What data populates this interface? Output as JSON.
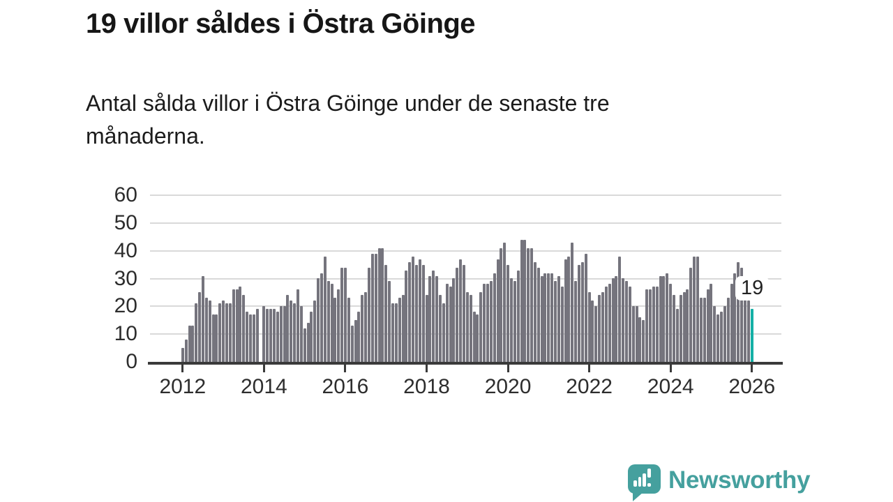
{
  "header": {
    "title": "19 villor såldes i Östra Göinge",
    "subtitle_line1": "Antal sålda villor i Östra Göinge under de senaste tre",
    "subtitle_line2": "månaderna."
  },
  "chart_data": {
    "type": "bar",
    "title": "19 villor såldes i Östra Göinge",
    "subtitle": "Antal sålda villor i Östra Göinge under de senaste tre månaderna.",
    "x_tick_labels": [
      "2012",
      "2014",
      "2016",
      "2018",
      "2020",
      "2022",
      "2024",
      "2026"
    ],
    "months_per_xtick": 24,
    "y_ticks": [
      0,
      10,
      20,
      30,
      40,
      50,
      60
    ],
    "ylim": [
      0,
      60
    ],
    "grid": "horizontal",
    "legend": "none",
    "bar_color": "#75747d",
    "highlight_color": "#14b0a6",
    "highlight_index_from_end": 1,
    "highlight_value": 19,
    "highlight_label": "19",
    "values": [
      5,
      8,
      13,
      13,
      21,
      25,
      31,
      23,
      22,
      17,
      17,
      21,
      22,
      21,
      21,
      26,
      26,
      27,
      24,
      18,
      17,
      17,
      19,
      0,
      20,
      19,
      19,
      19,
      18,
      20,
      20,
      24,
      22,
      21,
      26,
      20,
      12,
      14,
      18,
      22,
      30,
      32,
      38,
      29,
      28,
      23,
      26,
      34,
      34,
      23,
      13,
      15,
      18,
      24,
      25,
      34,
      39,
      39,
      41,
      41,
      35,
      29,
      21,
      21,
      23,
      24,
      33,
      36,
      38,
      35,
      37,
      35,
      24,
      31,
      33,
      31,
      24,
      21,
      28,
      27,
      30,
      34,
      37,
      35,
      25,
      24,
      18,
      17,
      25,
      28,
      28,
      29,
      32,
      37,
      41,
      43,
      35,
      30,
      29,
      33,
      44,
      44,
      41,
      41,
      36,
      34,
      31,
      32,
      32,
      32,
      29,
      31,
      27,
      37,
      38,
      43,
      29,
      35,
      36,
      39,
      25,
      22,
      20,
      24,
      25,
      27,
      28,
      30,
      31,
      38,
      30,
      29,
      27,
      20,
      20,
      16,
      15,
      26,
      26,
      27,
      27,
      31,
      31,
      32,
      28,
      24,
      19,
      24,
      25,
      26,
      34,
      38,
      38,
      23,
      23,
      26,
      28,
      20,
      17,
      18,
      20,
      23,
      28,
      32,
      36,
      34,
      30,
      22,
      19
    ]
  },
  "logo": {
    "text": "Newsworthy",
    "color": "#45a09e",
    "icon": "bar-chart-speech-bubble"
  }
}
